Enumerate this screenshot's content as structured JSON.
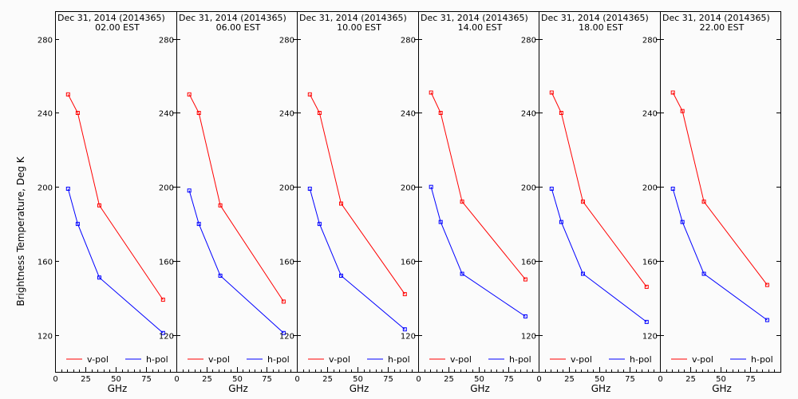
{
  "chart_data": {
    "type": "line",
    "ylabel": "Brightness Temperature, Deg K",
    "xlabel": "GHz",
    "xlim": [
      0,
      100
    ],
    "ylim": [
      100,
      295
    ],
    "x_ticks": [
      0,
      25,
      50,
      75
    ],
    "y_ticks": [
      120,
      160,
      200,
      240,
      280
    ],
    "series_colors": {
      "v-pol": "#ff0000",
      "h-pol": "#0000ff"
    },
    "legend": [
      "v-pol",
      "h-pol"
    ],
    "legend_position": "bottom",
    "grid": false,
    "panels": [
      {
        "title": "Dec 31, 2014 (2014365)",
        "subtitle": "02.00 EST",
        "series": [
          {
            "name": "v-pol",
            "x": [
              10.7,
              18.7,
              36.5,
              89.0
            ],
            "y": [
              250,
              240,
              190,
              139
            ]
          },
          {
            "name": "h-pol",
            "x": [
              10.7,
              18.7,
              36.5,
              89.0
            ],
            "y": [
              199,
              180,
              151,
              121
            ]
          }
        ]
      },
      {
        "title": "Dec 31, 2014 (2014365)",
        "subtitle": "06.00 EST",
        "series": [
          {
            "name": "v-pol",
            "x": [
              10.7,
              18.7,
              36.5,
              89.0
            ],
            "y": [
              250,
              240,
              190,
              138
            ]
          },
          {
            "name": "h-pol",
            "x": [
              10.7,
              18.7,
              36.5,
              89.0
            ],
            "y": [
              198,
              180,
              152,
              121
            ]
          }
        ]
      },
      {
        "title": "Dec 31, 2014 (2014365)",
        "subtitle": "10.00 EST",
        "series": [
          {
            "name": "v-pol",
            "x": [
              10.7,
              18.7,
              36.5,
              89.0
            ],
            "y": [
              250,
              240,
              191,
              142
            ]
          },
          {
            "name": "h-pol",
            "x": [
              10.7,
              18.7,
              36.5,
              89.0
            ],
            "y": [
              199,
              180,
              152,
              123
            ]
          }
        ]
      },
      {
        "title": "Dec 31, 2014 (2014365)",
        "subtitle": "14.00 EST",
        "series": [
          {
            "name": "v-pol",
            "x": [
              10.7,
              18.7,
              36.5,
              89.0
            ],
            "y": [
              251,
              240,
              192,
              150
            ]
          },
          {
            "name": "h-pol",
            "x": [
              10.7,
              18.7,
              36.5,
              89.0
            ],
            "y": [
              200,
              181,
              153,
              130
            ]
          }
        ]
      },
      {
        "title": "Dec 31, 2014 (2014365)",
        "subtitle": "18.00 EST",
        "series": [
          {
            "name": "v-pol",
            "x": [
              10.7,
              18.7,
              36.5,
              89.0
            ],
            "y": [
              251,
              240,
              192,
              146
            ]
          },
          {
            "name": "h-pol",
            "x": [
              10.7,
              18.7,
              36.5,
              89.0
            ],
            "y": [
              199,
              181,
              153,
              127
            ]
          }
        ]
      },
      {
        "title": "Dec 31, 2014 (2014365)",
        "subtitle": "22.00 EST",
        "series": [
          {
            "name": "v-pol",
            "x": [
              10.7,
              18.7,
              36.5,
              89.0
            ],
            "y": [
              251,
              241,
              192,
              147
            ]
          },
          {
            "name": "h-pol",
            "x": [
              10.7,
              18.7,
              36.5,
              89.0
            ],
            "y": [
              199,
              181,
              153,
              128
            ]
          }
        ]
      }
    ]
  }
}
